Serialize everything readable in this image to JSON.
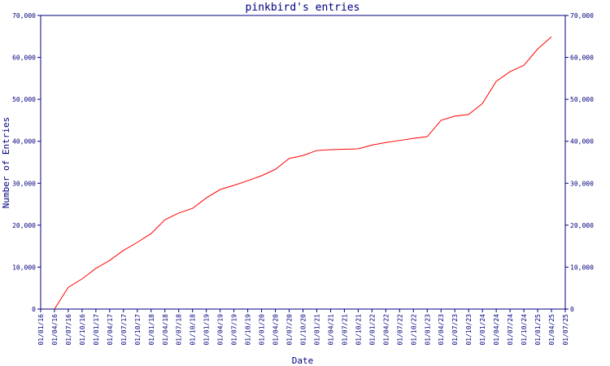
{
  "chart_data": {
    "type": "line",
    "title": "pinkbird's entries",
    "x_label": "Date",
    "y_label": "Number of Entries",
    "categories": [
      "01/01/16",
      "01/04/16",
      "01/07/16",
      "01/10/16",
      "01/01/17",
      "01/04/17",
      "01/07/17",
      "01/10/17",
      "01/01/18",
      "01/04/18",
      "01/07/18",
      "01/10/18",
      "01/01/19",
      "01/04/19",
      "01/07/19",
      "01/10/19",
      "01/01/20",
      "01/04/20",
      "01/07/20",
      "01/10/20",
      "01/01/21",
      "01/04/21",
      "01/07/21",
      "01/10/21",
      "01/01/22",
      "01/04/22",
      "01/07/22",
      "01/10/22",
      "01/01/23",
      "01/04/23",
      "01/07/23",
      "01/10/23",
      "01/01/24",
      "01/04/24",
      "01/07/24",
      "01/10/24",
      "01/01/25",
      "01/04/25",
      "01/07/25"
    ],
    "series": [
      {
        "name": "Entries",
        "color": "#ff0000",
        "values": [
          null,
          0,
          5200,
          7200,
          9700,
          11600,
          14000,
          15900,
          18000,
          21300,
          22900,
          24000,
          26500,
          28500,
          29500,
          30600,
          31800,
          33300,
          35900,
          36600,
          37800,
          38000,
          38100,
          38200,
          39100,
          39700,
          40200,
          40700,
          41100,
          45000,
          46000,
          46400,
          49000,
          54300,
          56600,
          58100,
          62000,
          64900,
          null
        ]
      }
    ],
    "ylim": [
      0,
      70000
    ],
    "yticks": [
      0,
      {
        "value": 10000,
        "label": "10,000"
      },
      {
        "value": 20000,
        "label": "20,000"
      },
      {
        "value": 30000,
        "label": "30,000"
      },
      {
        "value": 40000,
        "label": "40,000"
      },
      {
        "value": 50000,
        "label": "50,000"
      },
      {
        "value": 60000,
        "label": "60,000"
      },
      {
        "value": 70000,
        "label": "70,000"
      }
    ],
    "axis_color": "#000080"
  }
}
